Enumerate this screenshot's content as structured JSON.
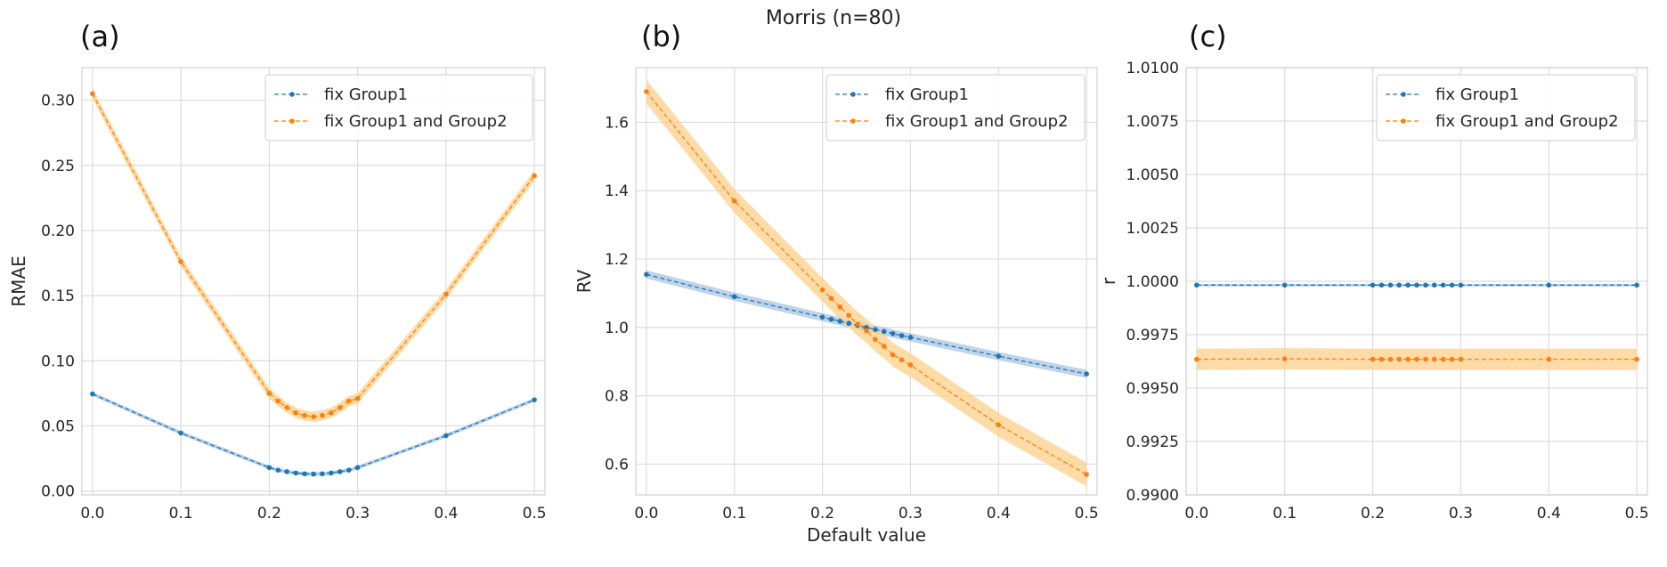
{
  "figure": {
    "suptitle": "Morris (n=80)",
    "colors": {
      "blue": "#1f77b4",
      "orange": "#ff7f0e",
      "orange_band": "#ffd08a",
      "blue_band": "#a9c6e2",
      "grid": "#dcdcdc",
      "spine": "#d0d0d0"
    }
  },
  "chart_data": [
    {
      "type": "line",
      "panel_label": "(a)",
      "xlabel": "",
      "ylabel": "RMAE",
      "xlim": [
        -0.012,
        0.512
      ],
      "ylim": [
        -0.003,
        0.325
      ],
      "xticks": [
        0.0,
        0.1,
        0.2,
        0.3,
        0.4,
        0.5
      ],
      "xtick_labels": [
        "0.0",
        "0.1",
        "0.2",
        "0.3",
        "0.4",
        "0.5"
      ],
      "yticks": [
        0.0,
        0.05,
        0.1,
        0.15,
        0.2,
        0.25,
        0.3
      ],
      "ytick_labels": [
        "0.00",
        "0.05",
        "0.10",
        "0.15",
        "0.20",
        "0.25",
        "0.30"
      ],
      "grid": true,
      "legend_position": "top-right",
      "x": [
        0.0,
        0.1,
        0.2,
        0.21,
        0.22,
        0.23,
        0.24,
        0.25,
        0.26,
        0.27,
        0.28,
        0.29,
        0.3,
        0.4,
        0.5
      ],
      "series": [
        {
          "name": "fix Group1",
          "color": "#1f77b4",
          "band_color": "#a9c6e2",
          "band": 0.0015,
          "values": [
            0.0745,
            0.0445,
            0.018,
            0.016,
            0.0148,
            0.0138,
            0.0132,
            0.013,
            0.0132,
            0.0138,
            0.0148,
            0.016,
            0.018,
            0.0425,
            0.07
          ]
        },
        {
          "name": "fix Group1 and Group2",
          "color": "#ff7f0e",
          "band_color": "#ffd08a",
          "band": 0.004,
          "values": [
            0.305,
            0.176,
            0.075,
            0.069,
            0.064,
            0.06,
            0.058,
            0.057,
            0.058,
            0.06,
            0.064,
            0.069,
            0.071,
            0.151,
            0.242
          ]
        }
      ]
    },
    {
      "type": "line",
      "panel_label": "(b)",
      "xlabel": "Default value",
      "ylabel": "RV",
      "xlim": [
        -0.012,
        0.512
      ],
      "ylim": [
        0.51,
        1.76
      ],
      "xticks": [
        0.0,
        0.1,
        0.2,
        0.3,
        0.4,
        0.5
      ],
      "xtick_labels": [
        "0.0",
        "0.1",
        "0.2",
        "0.3",
        "0.4",
        "0.5"
      ],
      "yticks": [
        0.6,
        0.8,
        1.0,
        1.2,
        1.4,
        1.6
      ],
      "ytick_labels": [
        "0.6",
        "0.8",
        "1.0",
        "1.2",
        "1.4",
        "1.6"
      ],
      "grid": true,
      "legend_position": "top-right",
      "x": [
        0.0,
        0.1,
        0.2,
        0.21,
        0.22,
        0.23,
        0.24,
        0.25,
        0.26,
        0.27,
        0.28,
        0.29,
        0.3,
        0.4,
        0.5
      ],
      "series": [
        {
          "name": "fix Group1",
          "color": "#1f77b4",
          "band_color": "#a9c6e2",
          "band": 0.012,
          "values": [
            1.155,
            1.09,
            1.03,
            1.024,
            1.018,
            1.012,
            1.006,
            1.0,
            0.994,
            0.988,
            0.982,
            0.976,
            0.971,
            0.916,
            0.864
          ]
        },
        {
          "name": "fix Group1 and Group2",
          "color": "#ff7f0e",
          "band_color": "#ffd08a",
          "band": 0.035,
          "values": [
            1.69,
            1.37,
            1.11,
            1.085,
            1.06,
            1.035,
            1.01,
            0.99,
            0.965,
            0.945,
            0.92,
            0.905,
            0.89,
            0.715,
            0.57
          ]
        }
      ]
    },
    {
      "type": "line",
      "panel_label": "(c)",
      "xlabel": "",
      "ylabel": "r",
      "xlim": [
        -0.012,
        0.512
      ],
      "ylim": [
        0.99,
        1.01
      ],
      "xticks": [
        0.0,
        0.1,
        0.2,
        0.3,
        0.4,
        0.5
      ],
      "xtick_labels": [
        "0.0",
        "0.1",
        "0.2",
        "0.3",
        "0.4",
        "0.5"
      ],
      "yticks": [
        0.99,
        0.9925,
        0.995,
        0.9975,
        1.0,
        1.0025,
        1.005,
        1.0075,
        1.01
      ],
      "ytick_labels": [
        "0.9900",
        "0.9925",
        "0.9950",
        "0.9975",
        "1.0000",
        "1.0025",
        "1.0050",
        "1.0075",
        "1.0100"
      ],
      "grid": true,
      "legend_position": "top-right",
      "x": [
        0.0,
        0.1,
        0.2,
        0.21,
        0.22,
        0.23,
        0.24,
        0.25,
        0.26,
        0.27,
        0.28,
        0.29,
        0.3,
        0.4,
        0.5
      ],
      "series": [
        {
          "name": "fix Group1",
          "color": "#1f77b4",
          "band_color": "#a9c6e2",
          "band": 6e-05,
          "values": [
            0.99982,
            0.99982,
            0.99982,
            0.99982,
            0.99982,
            0.99982,
            0.99982,
            0.99982,
            0.99982,
            0.99982,
            0.99982,
            0.99982,
            0.99982,
            0.99982,
            0.99982
          ]
        },
        {
          "name": "fix Group1 and Group2",
          "color": "#ff7f0e",
          "band_color": "#ffd08a",
          "band": 0.0005,
          "values": [
            0.99635,
            0.99637,
            0.99635,
            0.99635,
            0.99635,
            0.99635,
            0.99635,
            0.99635,
            0.99635,
            0.99635,
            0.99635,
            0.99635,
            0.99635,
            0.99635,
            0.99635
          ]
        }
      ]
    }
  ]
}
